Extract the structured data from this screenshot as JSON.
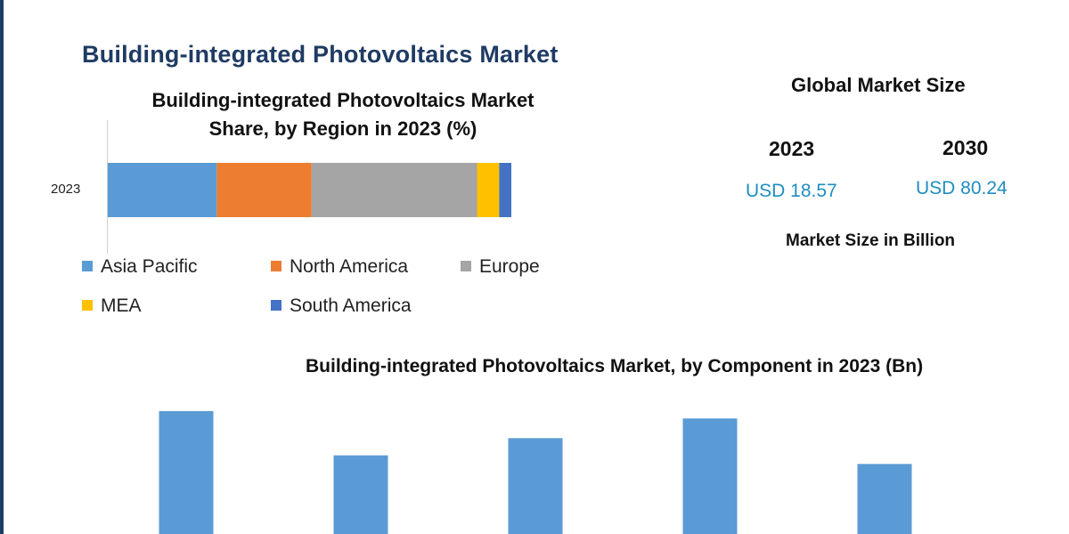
{
  "header": {
    "main_title": "Building-integrated Photovoltaics Market"
  },
  "region_chart": {
    "title_line1": "Building-integrated Photovoltaics Market",
    "title_line2": "Share, by Region in 2023 (%)"
  },
  "global_market": {
    "title": "Global Market Size",
    "year_a": "2023",
    "value_a": "USD 18.57",
    "year_b": "2030",
    "value_b": "USD 80.24",
    "unit_note": "Market Size in Billion"
  },
  "component_chart": {
    "title": "Building-integrated Photovoltaics Market, by Component in 2023 (Bn)"
  },
  "chart_data": [
    {
      "type": "bar",
      "orientation": "horizontal-stacked",
      "title": "Building-integrated Photovoltaics Market Share, by Region in 2023 (%)",
      "categories": [
        "2023"
      ],
      "series": [
        {
          "name": "Asia Pacific",
          "values": [
            27
          ],
          "color": "#5b9bd5"
        },
        {
          "name": "North America",
          "values": [
            23.5
          ],
          "color": "#ed7d31"
        },
        {
          "name": "Europe",
          "values": [
            41
          ],
          "color": "#a5a5a5"
        },
        {
          "name": "MEA",
          "values": [
            5.5
          ],
          "color": "#ffc000"
        },
        {
          "name": "South America",
          "values": [
            3
          ],
          "color": "#4472c4"
        }
      ],
      "legend_placement": "bottom",
      "grid": false
    },
    {
      "type": "bar",
      "title": "Building-integrated Photovoltaics Market, by Component in 2023 (Bn)",
      "categories": [
        "",
        "",
        "",
        "",
        ""
      ],
      "values": [
        10,
        6.4,
        7.8,
        9.4,
        5.7
      ],
      "color": "#5b9bd5",
      "ylim": [
        0,
        10.5
      ],
      "grid": false
    }
  ]
}
